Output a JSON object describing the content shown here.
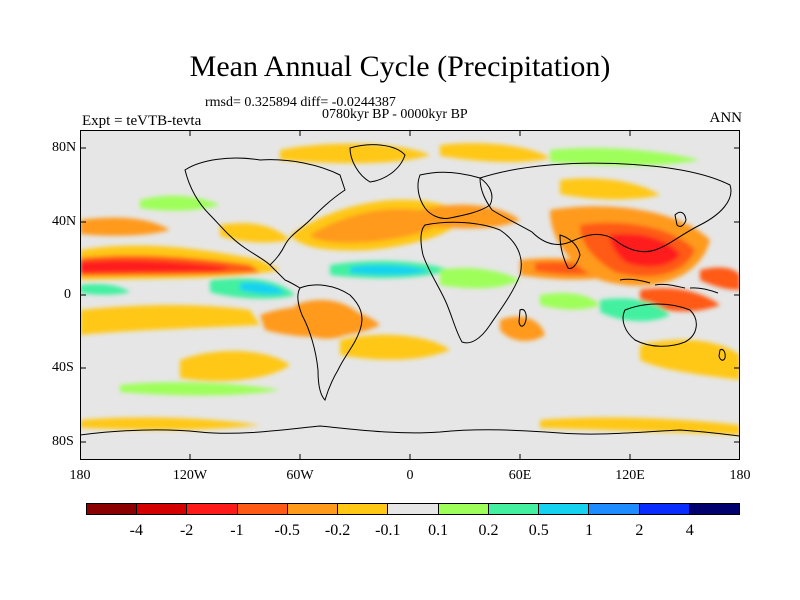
{
  "title": "Mean Annual Cycle (Precipitation)",
  "stats_text": "rmsd= 0.325894 diff= -0.0244387",
  "period_text": "0780kyr BP - 0000kyr BP",
  "experiment_label": "Expt = teVTB-tevta",
  "season_label": "ANN",
  "x_axis": {
    "ticks": [
      "180",
      "120W",
      "60W",
      "0",
      "60E",
      "120E",
      "180"
    ],
    "range": [
      -180,
      180
    ]
  },
  "y_axis": {
    "ticks": [
      "80N",
      "40N",
      "0",
      "40S",
      "80S"
    ],
    "range": [
      -90,
      90
    ]
  },
  "colorbar": {
    "labels": [
      "-4",
      "-2",
      "-1",
      "-0.5",
      "-0.2",
      "-0.1",
      "0.1",
      "0.2",
      "0.5",
      "1",
      "2",
      "4"
    ],
    "colors": [
      "#8b0000",
      "#d40000",
      "#ff1a1a",
      "#ff5a14",
      "#ff9a1a",
      "#ffc814",
      "#e6e6e6",
      "#9eff5a",
      "#42f0a0",
      "#14d2f0",
      "#1e8cff",
      "#0a2cff",
      "#00006e"
    ]
  },
  "map_colors": {
    "land_outline": "#000000",
    "background": "#e6e6e6"
  }
}
